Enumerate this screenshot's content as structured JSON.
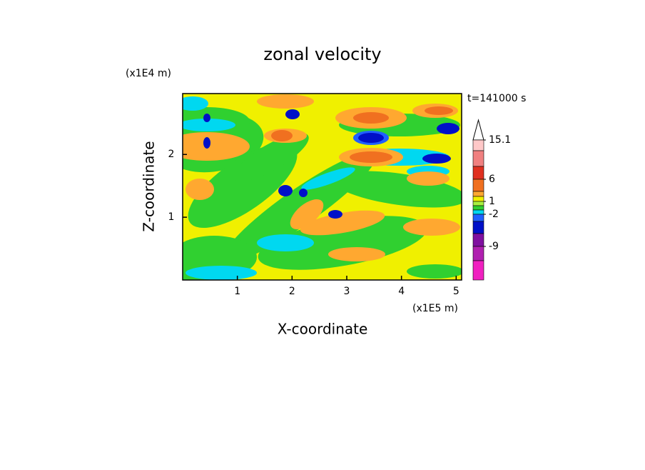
{
  "chart_data": {
    "type": "contour",
    "title": "zonal velocity",
    "x_label": "X-coordinate",
    "y_label": "Z-coordinate",
    "x_unit": "(x1E5 m)",
    "y_unit": "(x1E4 m)",
    "annotation": "t=141000 s",
    "xlim": [
      0,
      5.1
    ],
    "ylim": [
      0,
      2.97
    ],
    "xticks": [
      1,
      2,
      3,
      4,
      5
    ],
    "yticks": [
      1,
      2
    ],
    "colorbar": {
      "colors": [
        "#ffffff",
        "#ffc8c8",
        "#f08080",
        "#e03020",
        "#f07020",
        "#ffa830",
        "#f0f000",
        "#a8f040",
        "#30d030",
        "#00d8f0",
        "#2060ff",
        "#0010c8",
        "#8010a0",
        "#b020b0",
        "#f020c0"
      ],
      "labels": [
        15.1,
        6,
        1,
        -2,
        -9
      ]
    }
  }
}
